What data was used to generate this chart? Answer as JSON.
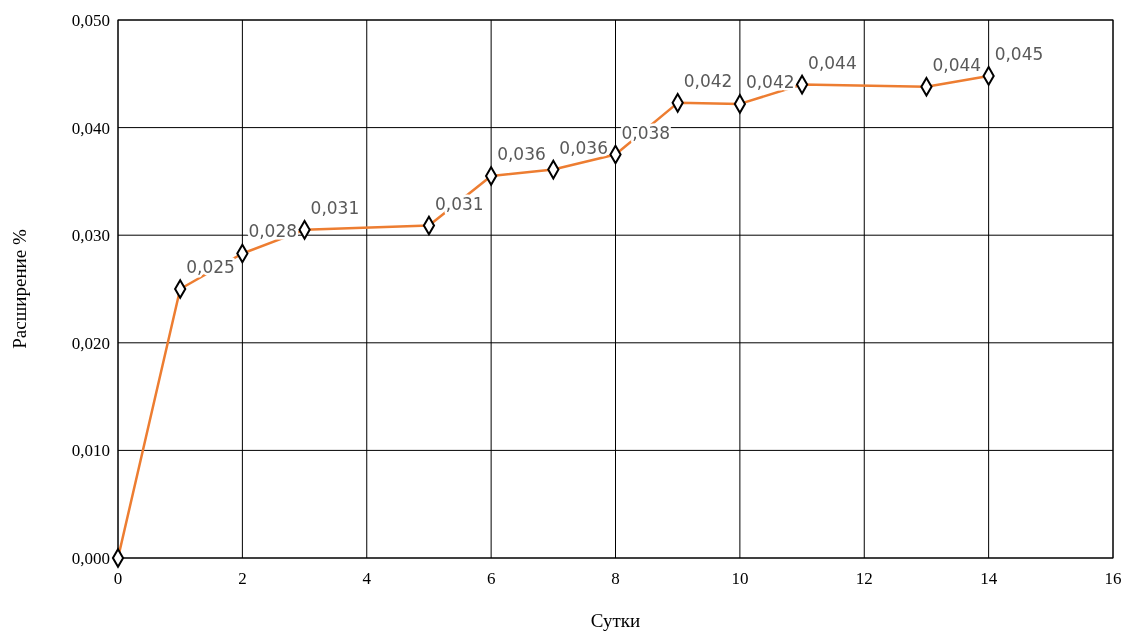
{
  "chart_data": {
    "type": "line",
    "xlabel": "Сутки",
    "ylabel": "Расширение %",
    "x": [
      0,
      1,
      2,
      3,
      5,
      6,
      7,
      8,
      9,
      10,
      11,
      13,
      14
    ],
    "series": [
      {
        "color": "#ed7d31",
        "values": [
          0,
          0.025,
          0.0283,
          0.0305,
          0.0309,
          0.0355,
          0.0361,
          0.0375,
          0.0423,
          0.0422,
          0.044,
          0.0438,
          0.0448
        ],
        "value_labels": [
          null,
          "0,025",
          "0,028",
          "0,031",
          "0,031",
          "0,036",
          "0,036",
          "0,038",
          "0,042",
          "0,042",
          "0,044",
          "0,044",
          "0,045"
        ]
      }
    ],
    "xlim": [
      0,
      16
    ],
    "xticks": [
      0,
      2,
      4,
      6,
      8,
      10,
      12,
      14,
      16
    ],
    "ylim": [
      0,
      0.05
    ],
    "yticks": [
      {
        "value": 0,
        "label": "0,000"
      },
      {
        "value": 0.01,
        "label": "0,010"
      },
      {
        "value": 0.02,
        "label": "0,020"
      },
      {
        "value": 0.03,
        "label": "0,030"
      },
      {
        "value": 0.04,
        "label": "0,040"
      },
      {
        "value": 0.05,
        "label": "0,050"
      }
    ],
    "grid": true,
    "marker": "diamond",
    "line_style": "solid"
  }
}
